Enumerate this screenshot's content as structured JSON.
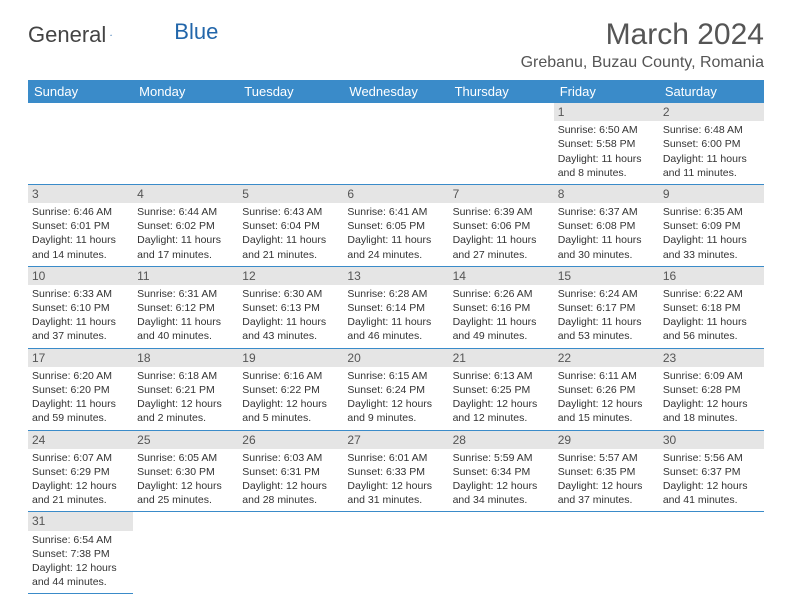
{
  "logo": {
    "part1": "General",
    "part2": "Blue"
  },
  "title": "March 2024",
  "location": "Grebanu, Buzau County, Romania",
  "weekdays": [
    "Sunday",
    "Monday",
    "Tuesday",
    "Wednesday",
    "Thursday",
    "Friday",
    "Saturday"
  ],
  "colors": {
    "header_bg": "#3a8bc9",
    "header_text": "#ffffff",
    "daynum_bg": "#e5e5e5",
    "text": "#333333",
    "title": "#555555"
  },
  "fonts": {
    "title_size": 30,
    "location_size": 16,
    "weekday_size": 13,
    "cell_size": 10.5,
    "daynum_size": 12
  },
  "weeks": [
    [
      null,
      null,
      null,
      null,
      null,
      {
        "n": "1",
        "sr": "Sunrise: 6:50 AM",
        "ss": "Sunset: 5:58 PM",
        "d1": "Daylight: 11 hours",
        "d2": "and 8 minutes."
      },
      {
        "n": "2",
        "sr": "Sunrise: 6:48 AM",
        "ss": "Sunset: 6:00 PM",
        "d1": "Daylight: 11 hours",
        "d2": "and 11 minutes."
      }
    ],
    [
      {
        "n": "3",
        "sr": "Sunrise: 6:46 AM",
        "ss": "Sunset: 6:01 PM",
        "d1": "Daylight: 11 hours",
        "d2": "and 14 minutes."
      },
      {
        "n": "4",
        "sr": "Sunrise: 6:44 AM",
        "ss": "Sunset: 6:02 PM",
        "d1": "Daylight: 11 hours",
        "d2": "and 17 minutes."
      },
      {
        "n": "5",
        "sr": "Sunrise: 6:43 AM",
        "ss": "Sunset: 6:04 PM",
        "d1": "Daylight: 11 hours",
        "d2": "and 21 minutes."
      },
      {
        "n": "6",
        "sr": "Sunrise: 6:41 AM",
        "ss": "Sunset: 6:05 PM",
        "d1": "Daylight: 11 hours",
        "d2": "and 24 minutes."
      },
      {
        "n": "7",
        "sr": "Sunrise: 6:39 AM",
        "ss": "Sunset: 6:06 PM",
        "d1": "Daylight: 11 hours",
        "d2": "and 27 minutes."
      },
      {
        "n": "8",
        "sr": "Sunrise: 6:37 AM",
        "ss": "Sunset: 6:08 PM",
        "d1": "Daylight: 11 hours",
        "d2": "and 30 minutes."
      },
      {
        "n": "9",
        "sr": "Sunrise: 6:35 AM",
        "ss": "Sunset: 6:09 PM",
        "d1": "Daylight: 11 hours",
        "d2": "and 33 minutes."
      }
    ],
    [
      {
        "n": "10",
        "sr": "Sunrise: 6:33 AM",
        "ss": "Sunset: 6:10 PM",
        "d1": "Daylight: 11 hours",
        "d2": "and 37 minutes."
      },
      {
        "n": "11",
        "sr": "Sunrise: 6:31 AM",
        "ss": "Sunset: 6:12 PM",
        "d1": "Daylight: 11 hours",
        "d2": "and 40 minutes."
      },
      {
        "n": "12",
        "sr": "Sunrise: 6:30 AM",
        "ss": "Sunset: 6:13 PM",
        "d1": "Daylight: 11 hours",
        "d2": "and 43 minutes."
      },
      {
        "n": "13",
        "sr": "Sunrise: 6:28 AM",
        "ss": "Sunset: 6:14 PM",
        "d1": "Daylight: 11 hours",
        "d2": "and 46 minutes."
      },
      {
        "n": "14",
        "sr": "Sunrise: 6:26 AM",
        "ss": "Sunset: 6:16 PM",
        "d1": "Daylight: 11 hours",
        "d2": "and 49 minutes."
      },
      {
        "n": "15",
        "sr": "Sunrise: 6:24 AM",
        "ss": "Sunset: 6:17 PM",
        "d1": "Daylight: 11 hours",
        "d2": "and 53 minutes."
      },
      {
        "n": "16",
        "sr": "Sunrise: 6:22 AM",
        "ss": "Sunset: 6:18 PM",
        "d1": "Daylight: 11 hours",
        "d2": "and 56 minutes."
      }
    ],
    [
      {
        "n": "17",
        "sr": "Sunrise: 6:20 AM",
        "ss": "Sunset: 6:20 PM",
        "d1": "Daylight: 11 hours",
        "d2": "and 59 minutes."
      },
      {
        "n": "18",
        "sr": "Sunrise: 6:18 AM",
        "ss": "Sunset: 6:21 PM",
        "d1": "Daylight: 12 hours",
        "d2": "and 2 minutes."
      },
      {
        "n": "19",
        "sr": "Sunrise: 6:16 AM",
        "ss": "Sunset: 6:22 PM",
        "d1": "Daylight: 12 hours",
        "d2": "and 5 minutes."
      },
      {
        "n": "20",
        "sr": "Sunrise: 6:15 AM",
        "ss": "Sunset: 6:24 PM",
        "d1": "Daylight: 12 hours",
        "d2": "and 9 minutes."
      },
      {
        "n": "21",
        "sr": "Sunrise: 6:13 AM",
        "ss": "Sunset: 6:25 PM",
        "d1": "Daylight: 12 hours",
        "d2": "and 12 minutes."
      },
      {
        "n": "22",
        "sr": "Sunrise: 6:11 AM",
        "ss": "Sunset: 6:26 PM",
        "d1": "Daylight: 12 hours",
        "d2": "and 15 minutes."
      },
      {
        "n": "23",
        "sr": "Sunrise: 6:09 AM",
        "ss": "Sunset: 6:28 PM",
        "d1": "Daylight: 12 hours",
        "d2": "and 18 minutes."
      }
    ],
    [
      {
        "n": "24",
        "sr": "Sunrise: 6:07 AM",
        "ss": "Sunset: 6:29 PM",
        "d1": "Daylight: 12 hours",
        "d2": "and 21 minutes."
      },
      {
        "n": "25",
        "sr": "Sunrise: 6:05 AM",
        "ss": "Sunset: 6:30 PM",
        "d1": "Daylight: 12 hours",
        "d2": "and 25 minutes."
      },
      {
        "n": "26",
        "sr": "Sunrise: 6:03 AM",
        "ss": "Sunset: 6:31 PM",
        "d1": "Daylight: 12 hours",
        "d2": "and 28 minutes."
      },
      {
        "n": "27",
        "sr": "Sunrise: 6:01 AM",
        "ss": "Sunset: 6:33 PM",
        "d1": "Daylight: 12 hours",
        "d2": "and 31 minutes."
      },
      {
        "n": "28",
        "sr": "Sunrise: 5:59 AM",
        "ss": "Sunset: 6:34 PM",
        "d1": "Daylight: 12 hours",
        "d2": "and 34 minutes."
      },
      {
        "n": "29",
        "sr": "Sunrise: 5:57 AM",
        "ss": "Sunset: 6:35 PM",
        "d1": "Daylight: 12 hours",
        "d2": "and 37 minutes."
      },
      {
        "n": "30",
        "sr": "Sunrise: 5:56 AM",
        "ss": "Sunset: 6:37 PM",
        "d1": "Daylight: 12 hours",
        "d2": "and 41 minutes."
      }
    ],
    [
      {
        "n": "31",
        "sr": "Sunrise: 6:54 AM",
        "ss": "Sunset: 7:38 PM",
        "d1": "Daylight: 12 hours",
        "d2": "and 44 minutes."
      },
      null,
      null,
      null,
      null,
      null,
      null
    ]
  ]
}
